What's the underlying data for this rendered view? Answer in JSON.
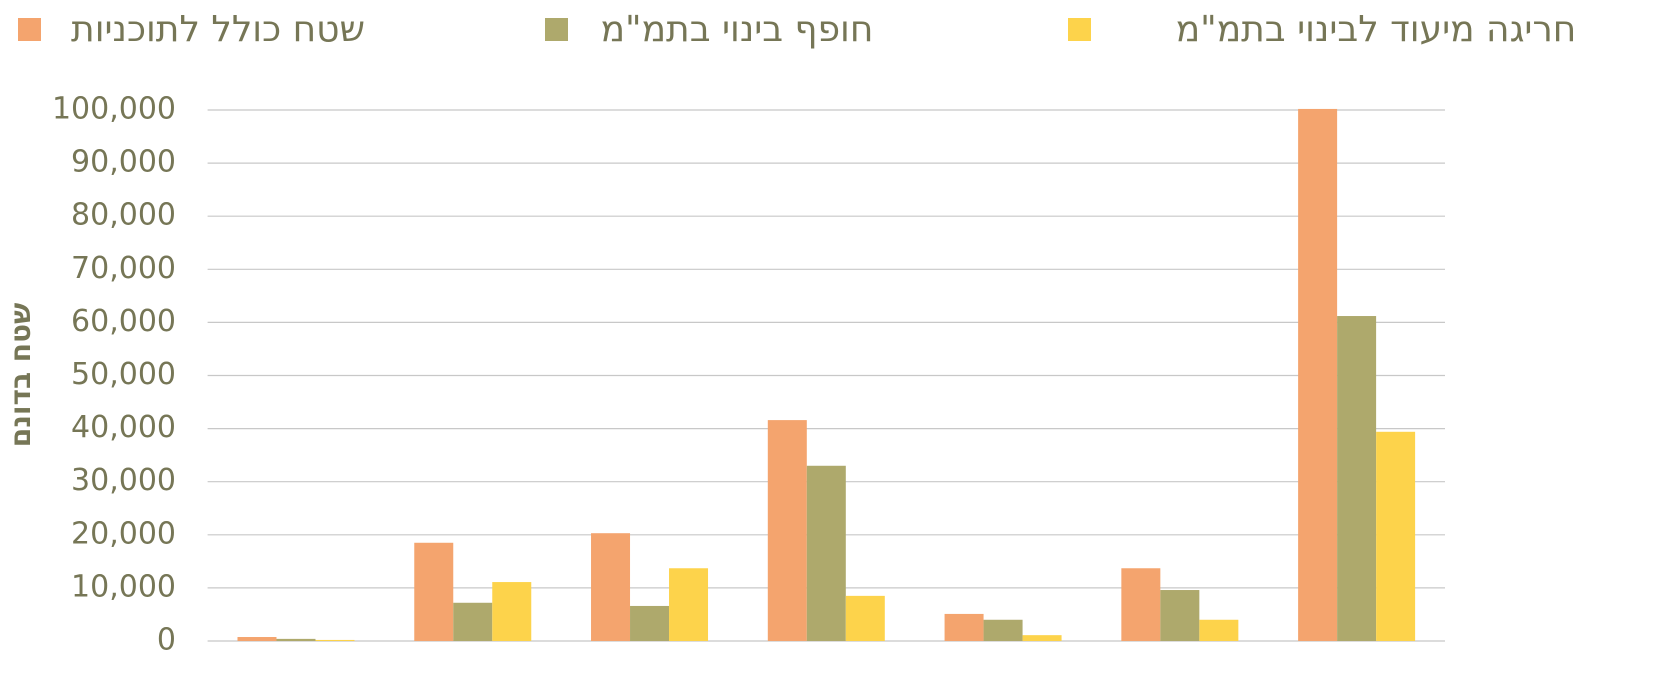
{
  "chart_data": {
    "type": "bar",
    "y_label": "שטח בדונם",
    "categories": [
      null,
      null,
      null,
      null,
      null,
      null,
      null
    ],
    "series": [
      {
        "name": "שטח כולל לתוכניות",
        "color": "#F4A46E",
        "values": [
          750,
          18500,
          20300,
          41600,
          5100,
          13700,
          100200
        ]
      },
      {
        "name": "חופף בינוי בתמ\"מ",
        "color": "#AEA96C",
        "values": [
          400,
          7200,
          6600,
          33000,
          4000,
          9600,
          61200
        ]
      },
      {
        "name": "חריגה מיעוד לבינוי בתמ\"מ",
        "color": "#FDD34B",
        "values": [
          200,
          11100,
          13700,
          8500,
          1100,
          4000,
          39400
        ]
      }
    ],
    "ylim": [
      0,
      100000
    ],
    "yticks": [
      0,
      {
        "value": 10000,
        "label": "10,000"
      },
      {
        "value": 20000,
        "label": "20,000"
      },
      {
        "value": 30000,
        "label": "30,000"
      },
      {
        "value": 40000,
        "label": "40,000"
      },
      {
        "value": 50000,
        "label": "50,000"
      },
      {
        "value": 60000,
        "label": "60,000"
      },
      {
        "value": 70000,
        "label": "70,000"
      },
      {
        "value": 80000,
        "label": "80,000"
      },
      {
        "value": 90000,
        "label": "90,000"
      },
      {
        "value": 100000,
        "label": "100,000"
      }
    ],
    "grid": true
  }
}
